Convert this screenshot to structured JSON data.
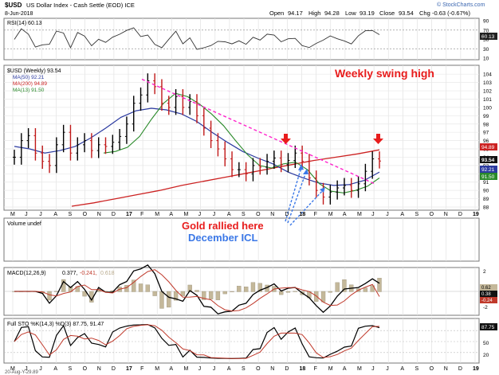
{
  "header": {
    "symbol": "$USD",
    "description": "US Dollar Index - Cash Settle (EOD) ICE",
    "date": "8-Jun-2018",
    "open_label": "Open",
    "open": "94.17",
    "high_label": "High",
    "high": "94.28",
    "low_label": "Low",
    "low": "93.19",
    "close_label": "Close",
    "close": "93.54",
    "chg_label": "Chg",
    "chg": "-0.63 (-0.67%)",
    "watermark": "© StockCharts.com"
  },
  "rsi": {
    "label": "RSI(14) 60.13",
    "ticks": [
      "90",
      "70",
      "50",
      "30",
      "10"
    ],
    "value_badge": "60.13"
  },
  "price": {
    "legend": {
      "title": "$USD (Weekly) 93.54",
      "ma50": "MA(50) 92.21",
      "ma200": "MA(200) 94.89",
      "ma13": "MA(13) 91.50"
    },
    "y_ticks": [
      "104",
      "103",
      "102",
      "101",
      "100",
      "99",
      "98",
      "97",
      "96",
      "95",
      "94",
      "93",
      "92",
      "91",
      "90",
      "89",
      "88"
    ],
    "badges": {
      "ma200": "94.89",
      "close": "93.54",
      "ma50": "92.21",
      "ma13": "91.50"
    },
    "annotations": {
      "swing_high": "Weekly swing high",
      "gold": "Gold rallied here",
      "icl": "December ICL"
    }
  },
  "x_axis": {
    "labels": [
      "M",
      "J",
      "J",
      "A",
      "S",
      "O",
      "N",
      "D",
      "17",
      "F",
      "M",
      "A",
      "M",
      "J",
      "J",
      "A",
      "S",
      "O",
      "N",
      "D",
      "18",
      "F",
      "M",
      "A",
      "M",
      "J",
      "J",
      "A",
      "S",
      "O",
      "N",
      "D",
      "19"
    ]
  },
  "volume": {
    "label": "Volume undef"
  },
  "macd": {
    "label_prefix": "MACD(12,26,9)",
    "v1": "0.377,",
    "v2": "-0.241,",
    "v3": "0.618",
    "ticks": [
      "2",
      "0",
      "-2"
    ],
    "badges": [
      "0.62",
      "0.38",
      "-0.24"
    ]
  },
  "sto": {
    "label": "Full STO %K(14,3) %D(3) 87.75, 91.47",
    "ticks": [
      "50",
      "20"
    ],
    "badges": [
      "87.75"
    ]
  },
  "footer": {
    "left": "20-Aug-Y-29.89"
  },
  "colors": {
    "price": "#000000",
    "ma50": "#2b3aa0",
    "ma200": "#cc2222",
    "ma13": "#2a8a2a",
    "trendline": "#ff22cc",
    "annotation_red": "#e81c1c",
    "annotation_blue": "#3b78e7",
    "macd_hist": "#c4b89a"
  },
  "chart_data": {
    "type": "line",
    "title": "$USD US Dollar Index - Cash Settle (EOD) ICE",
    "x_range": [
      "2016-04",
      "2018-06"
    ],
    "ylim": [
      88,
      104.5
    ],
    "series": [
      {
        "name": "$USD (Weekly)",
        "values": [
          94.0,
          96.0,
          96.6,
          94.5,
          93.5,
          93.0,
          95.5,
          97.0,
          94.5,
          95.5,
          96.0,
          94.8,
          95.5,
          95.3,
          95.8,
          96.5,
          98.0,
          100.5,
          101.5,
          103.2,
          102.5,
          100.5,
          100.0,
          101.3,
          100.0,
          100.7,
          99.0,
          97.5,
          96.0,
          95.0,
          93.8,
          92.5,
          92.5,
          92.0,
          93.0,
          92.8,
          93.5,
          93.9,
          93.1,
          93.6,
          94.5,
          93.5,
          91.5,
          90.0,
          89.2,
          89.8,
          90.3,
          90.6,
          90.0,
          90.8,
          92.3,
          93.8,
          93.54
        ]
      },
      {
        "name": "MA(50) 92.21",
        "values": [
          95.3,
          95.0,
          94.5,
          94.8,
          95.3,
          96.3,
          97.5,
          98.8,
          99.6,
          99.9,
          99.7,
          99.2,
          98.3,
          97.0,
          95.8,
          94.7,
          93.9,
          93.2,
          92.2,
          91.5,
          90.9,
          90.6,
          90.7,
          91.2,
          92.21
        ]
      },
      {
        "name": "MA(200) 94.89",
        "values": [
          88.1,
          88.5,
          89.0,
          89.5,
          90.0,
          90.6,
          91.1,
          91.6,
          92.1,
          92.6,
          93.1,
          93.6,
          94.0,
          94.4,
          94.89
        ]
      },
      {
        "name": "MA(13) 91.50",
        "values": [
          94.5,
          94.7,
          95.2,
          96.5,
          98.6,
          100.5,
          101.7,
          101.3,
          100.4,
          99.2,
          97.8,
          96.0,
          94.3,
          93.0,
          92.7,
          93.2,
          93.4,
          92.5,
          90.8,
          89.9,
          89.7,
          90.0,
          90.5,
          91.5
        ]
      }
    ],
    "rsi": {
      "label": "RSI(14)",
      "last": 60.13,
      "ylim": [
        10,
        90
      ]
    },
    "macd": {
      "params": "12,26,9",
      "macd": 0.377,
      "signal": -0.241,
      "histogram": 0.618
    },
    "stochastic": {
      "label": "Full STO %K(14,3) %D(3)",
      "k": 87.75,
      "d": 91.47
    }
  }
}
